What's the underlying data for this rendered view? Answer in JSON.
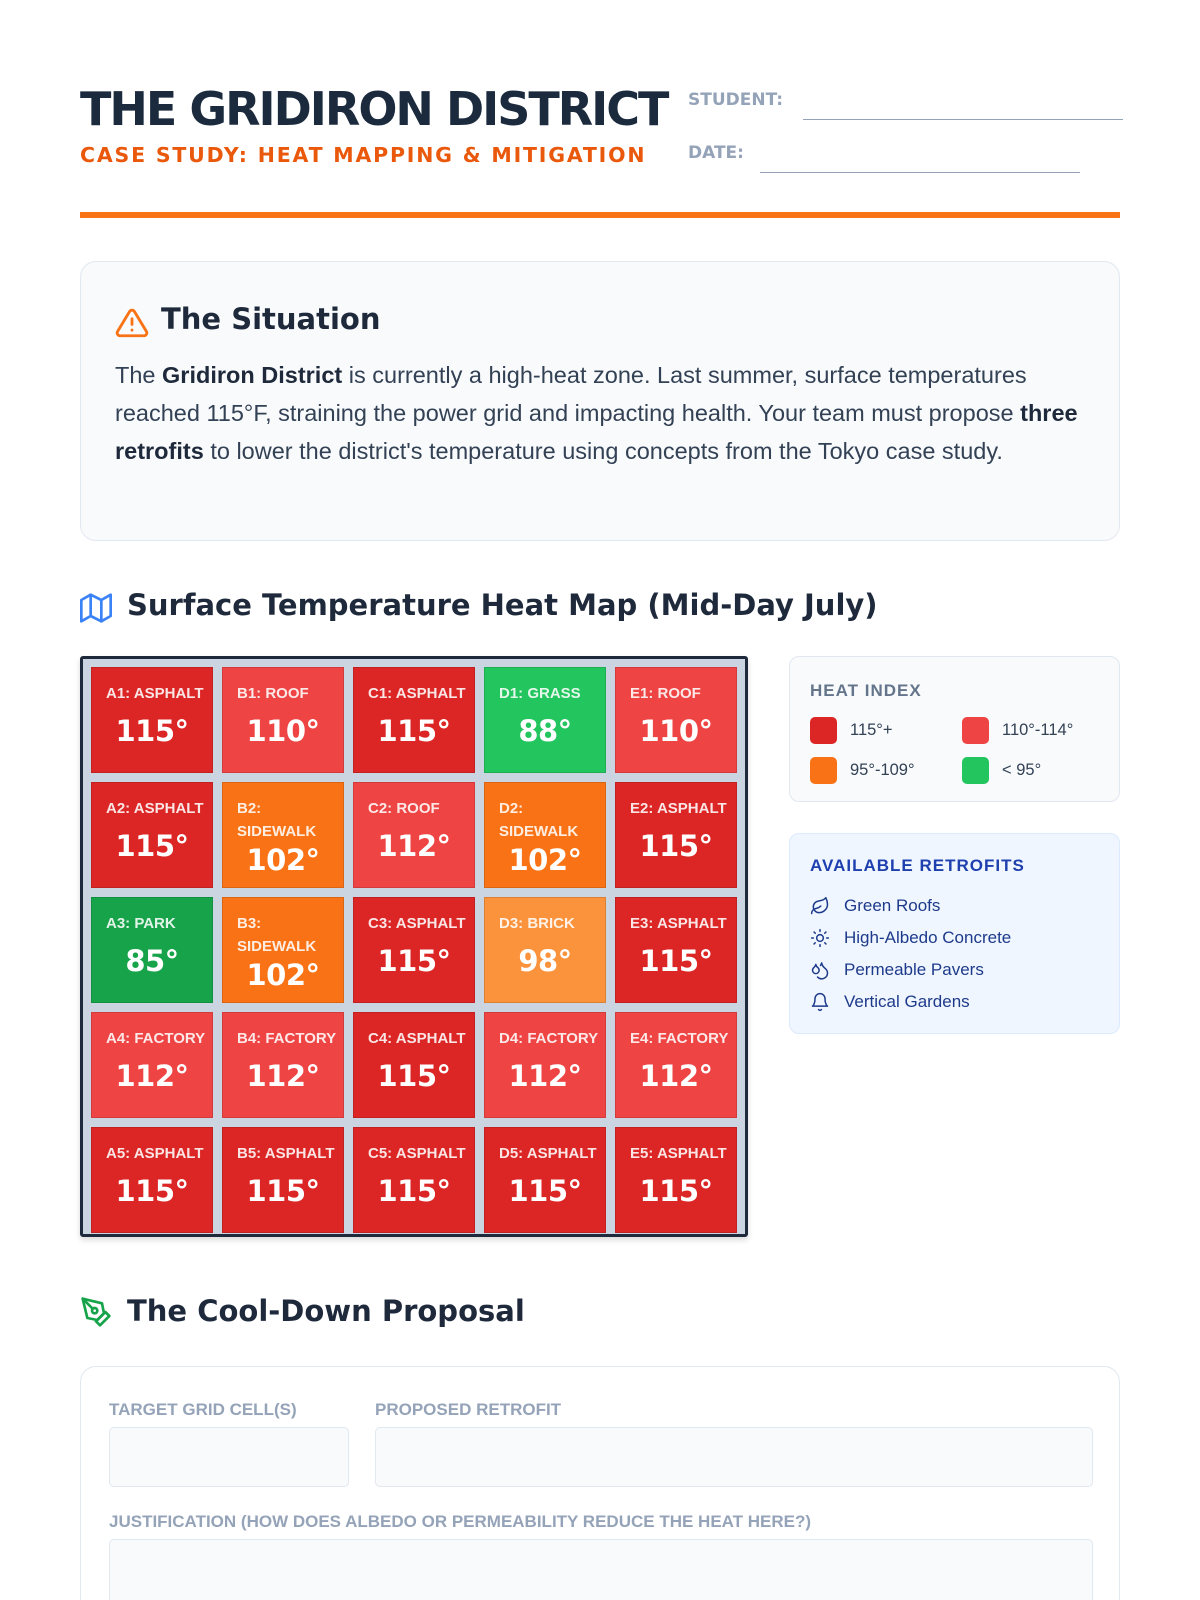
{
  "header": {
    "title": "THE GRIDIRON DISTRICT",
    "subtitle": "CASE STUDY: HEAT MAPPING & MITIGATION",
    "student_label": "STUDENT:",
    "date_label": "DATE:",
    "accent_color": "#f97316"
  },
  "situation": {
    "icon": "warning-triangle-icon",
    "title": "The Situation",
    "text_1": "The ",
    "bold_1": "Gridiron District",
    "text_2": " is currently a high-heat zone. Last summer, surface temperatures reached 115°F, straining the power grid and impacting health. Your team must propose ",
    "bold_2": "three retrofits",
    "text_3": " to lower the district's temperature using concepts from the Tokyo case study."
  },
  "heatmap": {
    "icon": "map-icon",
    "title": "Surface Temperature Heat Map (Mid-Day July)",
    "rows": [
      [
        {
          "label": "A1: ASPHALT",
          "temp": "115°",
          "color": "#dc2626"
        },
        {
          "label": "B1: ROOF",
          "temp": "110°",
          "color": "#ef4444"
        },
        {
          "label": "C1: ASPHALT",
          "temp": "115°",
          "color": "#dc2626"
        },
        {
          "label": "D1: GRASS",
          "temp": "88°",
          "color": "#22c55e"
        },
        {
          "label": "E1: ROOF",
          "temp": "110°",
          "color": "#ef4444"
        }
      ],
      [
        {
          "label": "A2: ASPHALT",
          "temp": "115°",
          "color": "#dc2626"
        },
        {
          "label": "B2: SIDEWALK",
          "temp": "102°",
          "color": "#f97316"
        },
        {
          "label": "C2: ROOF",
          "temp": "112°",
          "color": "#ef4444"
        },
        {
          "label": "D2: SIDEWALK",
          "temp": "102°",
          "color": "#f97316"
        },
        {
          "label": "E2: ASPHALT",
          "temp": "115°",
          "color": "#dc2626"
        }
      ],
      [
        {
          "label": "A3: PARK",
          "temp": "85°",
          "color": "#16a34a"
        },
        {
          "label": "B3: SIDEWALK",
          "temp": "102°",
          "color": "#f97316"
        },
        {
          "label": "C3: ASPHALT",
          "temp": "115°",
          "color": "#dc2626"
        },
        {
          "label": "D3: BRICK",
          "temp": "98°",
          "color": "#fb923c"
        },
        {
          "label": "E3: ASPHALT",
          "temp": "115°",
          "color": "#dc2626"
        }
      ],
      [
        {
          "label": "A4: FACTORY",
          "temp": "112°",
          "color": "#ef4444"
        },
        {
          "label": "B4: FACTORY",
          "temp": "112°",
          "color": "#ef4444"
        },
        {
          "label": "C4: ASPHALT",
          "temp": "115°",
          "color": "#dc2626"
        },
        {
          "label": "D4: FACTORY",
          "temp": "112°",
          "color": "#ef4444"
        },
        {
          "label": "E4: FACTORY",
          "temp": "112°",
          "color": "#ef4444"
        }
      ],
      [
        {
          "label": "A5: ASPHALT",
          "temp": "115°",
          "color": "#dc2626"
        },
        {
          "label": "B5: ASPHALT",
          "temp": "115°",
          "color": "#dc2626"
        },
        {
          "label": "C5: ASPHALT",
          "temp": "115°",
          "color": "#dc2626"
        },
        {
          "label": "D5: ASPHALT",
          "temp": "115°",
          "color": "#dc2626"
        },
        {
          "label": "E5: ASPHALT",
          "temp": "115°",
          "color": "#dc2626"
        }
      ]
    ]
  },
  "legend": {
    "title": "HEAT INDEX",
    "items": [
      {
        "label": "115°+",
        "color": "#dc2626"
      },
      {
        "label": "110°-114°",
        "color": "#ef4444"
      },
      {
        "label": "95°-109°",
        "color": "#f97316"
      },
      {
        "label": "< 95°",
        "color": "#22c55e"
      }
    ]
  },
  "retrofits": {
    "title": "AVAILABLE RETROFITS",
    "items": [
      {
        "label": "Green Roofs",
        "icon": "leaf-icon"
      },
      {
        "label": "High-Albedo Concrete",
        "icon": "sun-icon"
      },
      {
        "label": "Permeable Pavers",
        "icon": "droplets-icon"
      },
      {
        "label": "Vertical Gardens",
        "icon": "sprout-icon"
      }
    ]
  },
  "proposal": {
    "icon": "pen-tool-icon",
    "title": "The Cool-Down Proposal",
    "target_label": "TARGET GRID CELL(S)",
    "retrofit_label": "PROPOSED RETROFIT",
    "justification_label": "JUSTIFICATION (HOW DOES ALBEDO OR PERMEABILITY REDUCE THE HEAT HERE?)"
  }
}
